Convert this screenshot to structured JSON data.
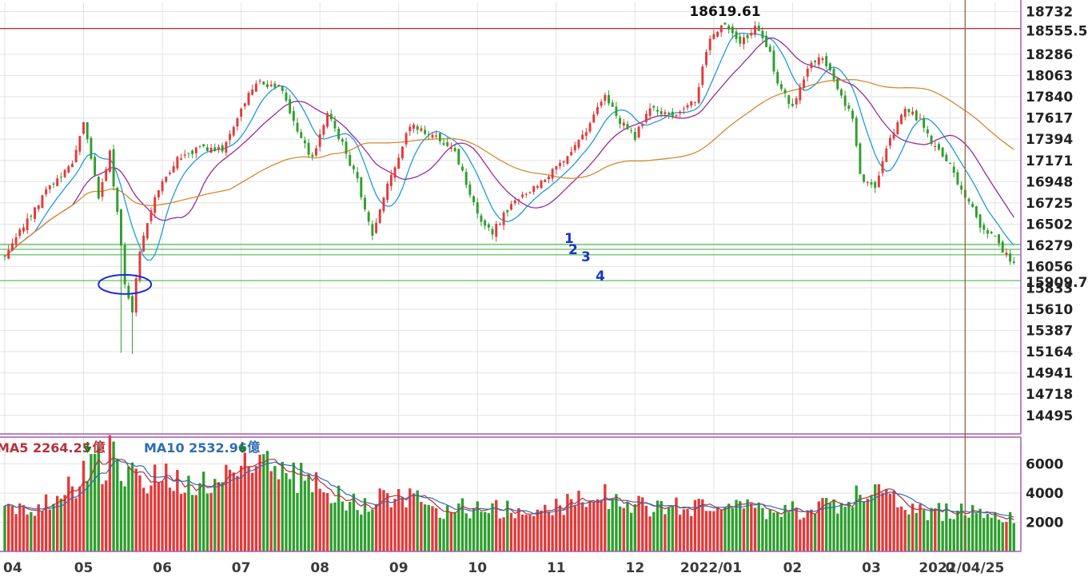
{
  "chart_data": {
    "type": "candlestick",
    "price_axis": {
      "ticks": [
        18732,
        18286,
        18063,
        17840,
        17617,
        17394,
        17171,
        16948,
        16725,
        16502,
        16279,
        16056,
        15833,
        15610,
        15387,
        15164,
        14941,
        14718,
        14495
      ],
      "range": [
        14300,
        18830
      ]
    },
    "x_axis": {
      "labels": [
        {
          "text": "04",
          "index": 0
        },
        {
          "text": "05",
          "index": 21
        },
        {
          "text": "06",
          "index": 42
        },
        {
          "text": "07",
          "index": 63
        },
        {
          "text": "08",
          "index": 84
        },
        {
          "text": "09",
          "index": 105
        },
        {
          "text": "10",
          "index": 126
        },
        {
          "text": "11",
          "index": 147
        },
        {
          "text": "12",
          "index": 168
        },
        {
          "text": "2022/01",
          "index": 189
        },
        {
          "text": "02",
          "index": 210
        },
        {
          "text": "03",
          "index": 231
        },
        {
          "text": "0",
          "index": 252
        },
        {
          "text": "2022/04/25",
          "index": 264
        }
      ],
      "bars": 270
    },
    "close_path": [
      [
        0,
        16190
      ],
      [
        6,
        16550
      ],
      [
        12,
        16900
      ],
      [
        18,
        17150
      ],
      [
        21,
        17600
      ],
      [
        25,
        16800
      ],
      [
        28,
        17250
      ],
      [
        30,
        16600
      ],
      [
        32,
        15900
      ],
      [
        34,
        15600
      ],
      [
        36,
        16200
      ],
      [
        40,
        16800
      ],
      [
        46,
        17200
      ],
      [
        52,
        17300
      ],
      [
        58,
        17300
      ],
      [
        64,
        17800
      ],
      [
        68,
        18000
      ],
      [
        74,
        17920
      ],
      [
        78,
        17450
      ],
      [
        82,
        17200
      ],
      [
        86,
        17650
      ],
      [
        90,
        17350
      ],
      [
        94,
        16950
      ],
      [
        98,
        16400
      ],
      [
        102,
        16900
      ],
      [
        108,
        17550
      ],
      [
        114,
        17450
      ],
      [
        120,
        17250
      ],
      [
        126,
        16600
      ],
      [
        130,
        16420
      ],
      [
        134,
        16650
      ],
      [
        140,
        16850
      ],
      [
        146,
        17050
      ],
      [
        150,
        17200
      ],
      [
        156,
        17550
      ],
      [
        160,
        17850
      ],
      [
        164,
        17580
      ],
      [
        168,
        17420
      ],
      [
        172,
        17700
      ],
      [
        178,
        17650
      ],
      [
        184,
        17800
      ],
      [
        188,
        18450
      ],
      [
        192,
        18600
      ],
      [
        196,
        18380
      ],
      [
        200,
        18580
      ],
      [
        204,
        18300
      ],
      [
        206,
        17950
      ],
      [
        210,
        17750
      ],
      [
        214,
        18150
      ],
      [
        218,
        18250
      ],
      [
        222,
        17950
      ],
      [
        226,
        17600
      ],
      [
        228,
        17000
      ],
      [
        232,
        16900
      ],
      [
        236,
        17400
      ],
      [
        240,
        17700
      ],
      [
        244,
        17600
      ],
      [
        248,
        17300
      ],
      [
        252,
        17100
      ],
      [
        256,
        16800
      ],
      [
        260,
        16500
      ],
      [
        264,
        16350
      ],
      [
        268,
        16120
      ]
    ],
    "ma_lines": [
      {
        "color": "#1e9be0",
        "lag": 4
      },
      {
        "color": "#9a2a9e",
        "lag": 9
      },
      {
        "color": "#d48a2e",
        "lag": 30
      }
    ],
    "resistance_line": {
      "value": 18555.5,
      "label": "18555.5",
      "color": "#a0272d"
    },
    "support_lines": [
      {
        "value": 16290,
        "label": "1"
      },
      {
        "value": 16238,
        "label": "2"
      },
      {
        "value": 16180,
        "label": "3"
      },
      {
        "value": 15909.7,
        "label": "4"
      }
    ],
    "support_edge_label": "15909.7",
    "support_color": "#33b233",
    "peak_annotation": {
      "text": "18619.61",
      "index": 192,
      "value": 18619.61
    },
    "highlight_ellipse": {
      "index": 32,
      "value": 15870
    },
    "vertical_marker_index": 256,
    "volume_axis": {
      "ticks": [
        6000,
        4000,
        2000
      ],
      "range": [
        0,
        7400
      ]
    },
    "volume_path": [
      [
        0,
        2700
      ],
      [
        8,
        2900
      ],
      [
        14,
        3900
      ],
      [
        20,
        5000
      ],
      [
        24,
        5600
      ],
      [
        28,
        6600
      ],
      [
        32,
        5900
      ],
      [
        36,
        4600
      ],
      [
        40,
        4900
      ],
      [
        46,
        5100
      ],
      [
        52,
        4600
      ],
      [
        58,
        4800
      ],
      [
        64,
        5800
      ],
      [
        70,
        6100
      ],
      [
        76,
        5500
      ],
      [
        82,
        4700
      ],
      [
        88,
        4000
      ],
      [
        94,
        3300
      ],
      [
        100,
        3500
      ],
      [
        106,
        3900
      ],
      [
        112,
        3200
      ],
      [
        118,
        2900
      ],
      [
        124,
        3000
      ],
      [
        130,
        2900
      ],
      [
        136,
        2800
      ],
      [
        142,
        3000
      ],
      [
        148,
        3200
      ],
      [
        154,
        3500
      ],
      [
        160,
        3800
      ],
      [
        166,
        3300
      ],
      [
        172,
        3100
      ],
      [
        178,
        3300
      ],
      [
        184,
        2900
      ],
      [
        190,
        3000
      ],
      [
        196,
        3100
      ],
      [
        202,
        2900
      ],
      [
        208,
        2700
      ],
      [
        214,
        2900
      ],
      [
        220,
        3000
      ],
      [
        226,
        3600
      ],
      [
        230,
        4300
      ],
      [
        234,
        3500
      ],
      [
        240,
        3200
      ],
      [
        246,
        2800
      ],
      [
        252,
        2700
      ],
      [
        258,
        2600
      ],
      [
        264,
        2400
      ],
      [
        268,
        2400
      ]
    ],
    "volume_legend": [
      {
        "text": "MA5 2264.25",
        "unit": "億",
        "color": "#b5313a"
      },
      {
        "text": "MA10 2532.96",
        "unit": "億",
        "color": "#2f6db3"
      }
    ],
    "colors": {
      "up": "#e23a3a",
      "down": "#2e9e2e",
      "axis": "#a55ab2",
      "grid": "#e2e2e2"
    }
  }
}
